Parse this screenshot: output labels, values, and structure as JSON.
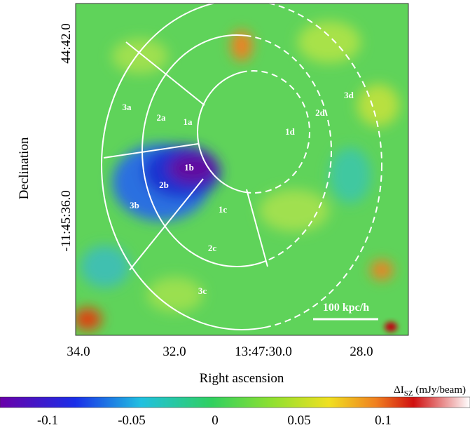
{
  "figure": {
    "y_axis": {
      "label": "Declination",
      "ticks": [
        "44:42.0",
        "-11:45:36.0"
      ]
    },
    "x_axis": {
      "label": "Right ascension",
      "ticks": [
        "34.0",
        "32.0",
        "13:47:30.0",
        "28.0"
      ]
    },
    "regions": [
      "1a",
      "1b",
      "1c",
      "1d",
      "2a",
      "2b",
      "2c",
      "2d",
      "3a",
      "3b",
      "3c",
      "3d"
    ],
    "scale_bar": "100 kpc/h",
    "colorbar": {
      "label": "ΔI",
      "label_sub": "SZ",
      "label_unit": " (mJy/beam)",
      "ticks": [
        "-0.1",
        "-0.05",
        "0",
        "0.05",
        "0.1"
      ]
    }
  }
}
